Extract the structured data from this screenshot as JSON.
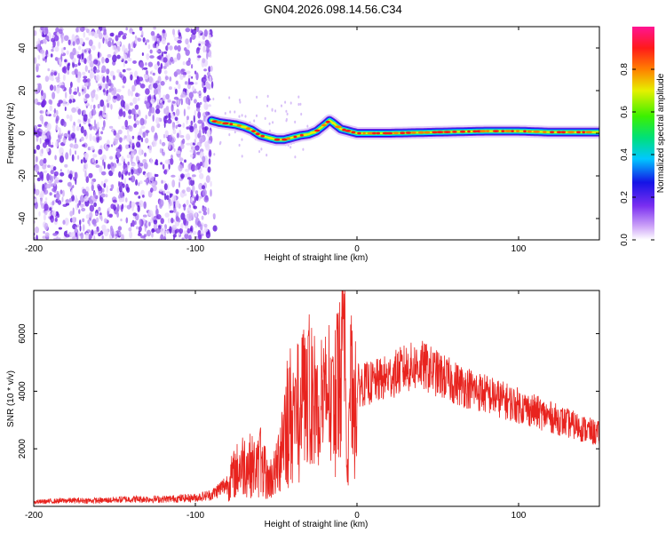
{
  "title": "GN04.2026.098.14.56.C34",
  "colors": {
    "snr_line": "#e8231e",
    "noise_purple": "#6a1ee0",
    "axis": "#000000"
  },
  "chart_data": [
    {
      "type": "heatmap",
      "name": "spectrogram",
      "xlabel": "Height of straight line (km)",
      "ylabel": "Frequency (Hz)",
      "xlim": [
        -200,
        150
      ],
      "ylim": [
        -50,
        50
      ],
      "xticks": [
        -200,
        -100,
        0,
        100
      ],
      "yticks": [
        -40,
        -20,
        0,
        20,
        40
      ],
      "colorbar": {
        "label": "Normalized spectral amplitude",
        "range": [
          0,
          1
        ],
        "ticks": [
          0.0,
          0.2,
          0.4,
          0.6,
          0.8
        ],
        "colormap": [
          "#ffffff",
          "#d0a8f8",
          "#7a2ef0",
          "#1414e6",
          "#00c8ff",
          "#00e078",
          "#3cf000",
          "#e6f000",
          "#ff8000",
          "#ff1a1a",
          "#ff1493"
        ]
      },
      "noise_region": {
        "x_range": [
          -200,
          -90
        ],
        "freq_range": [
          -50,
          50
        ]
      },
      "signal_ridge": {
        "x": [
          -90,
          -85,
          -80,
          -75,
          -70,
          -65,
          -60,
          -55,
          -50,
          -45,
          -40,
          -35,
          -30,
          -25,
          -20,
          -17,
          -15,
          -10,
          -5,
          0,
          20,
          50,
          80,
          100,
          120,
          150
        ],
        "freq": [
          6,
          5,
          4.5,
          4,
          3,
          1.5,
          -1,
          -2,
          -3,
          -3,
          -2,
          -1,
          -0.5,
          1,
          4,
          6,
          5,
          2,
          1,
          0,
          0,
          0.5,
          1,
          1,
          0.5,
          0.5
        ]
      }
    },
    {
      "type": "line",
      "name": "snr",
      "xlabel": "Height of straight line (km)",
      "ylabel": "SNR (10 * v/v)",
      "xlim": [
        -200,
        150
      ],
      "ylim": [
        0,
        7500
      ],
      "xticks": [
        -200,
        -100,
        0,
        100
      ],
      "yticks": [
        2000,
        4000,
        6000
      ],
      "x": [
        -200,
        -180,
        -160,
        -140,
        -120,
        -100,
        -90,
        -80,
        -75,
        -70,
        -65,
        -60,
        -55,
        -50,
        -45,
        -40,
        -35,
        -30,
        -25,
        -20,
        -15,
        -10,
        -8,
        -6,
        -5,
        0,
        10,
        20,
        30,
        40,
        50,
        60,
        70,
        80,
        90,
        100,
        110,
        120,
        130,
        140,
        150
      ],
      "y": [
        150,
        200,
        200,
        250,
        250,
        300,
        400,
        800,
        1200,
        1500,
        1400,
        1300,
        900,
        1200,
        2800,
        3300,
        3600,
        3800,
        3700,
        3900,
        4200,
        4500,
        6500,
        1500,
        4000,
        4200,
        4300,
        4500,
        4800,
        4900,
        4600,
        4300,
        4100,
        3900,
        3700,
        3500,
        3300,
        3100,
        2900,
        2700,
        2500
      ],
      "spikes": [
        {
          "x": -60,
          "y": 2800
        },
        {
          "x": -57,
          "y": 2200
        },
        {
          "x": -38,
          "y": 4500
        },
        {
          "x": -33,
          "y": 6200
        },
        {
          "x": -30,
          "y": 6700
        },
        {
          "x": -25,
          "y": 5000
        },
        {
          "x": -20,
          "y": 5100
        },
        {
          "x": -15,
          "y": 5300
        },
        {
          "x": -12,
          "y": 6800
        },
        {
          "x": -8,
          "y": 7600
        }
      ]
    }
  ]
}
